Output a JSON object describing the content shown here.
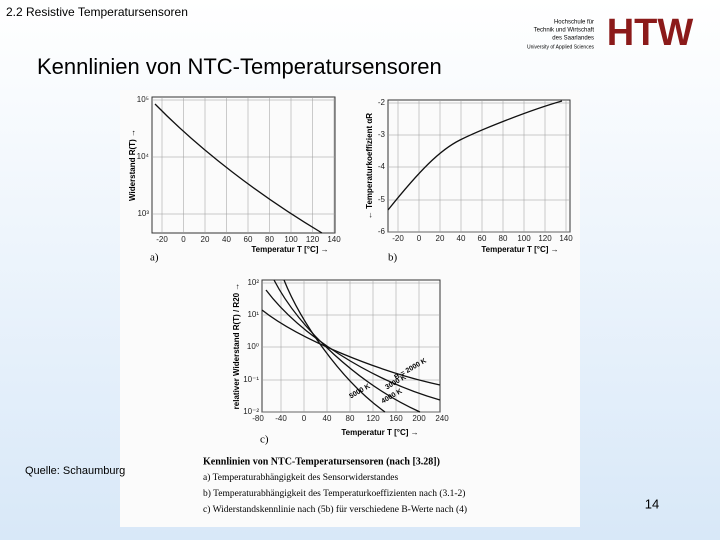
{
  "header": {
    "section": "2.2 Resistive Temperatursensoren",
    "title": "Kennlinien von NTC-Temperatursensoren"
  },
  "logo": {
    "lines": [
      "Hochschule für",
      "Technik und Wirtschaft",
      "des Saarlandes",
      "University of Applied Sciences"
    ],
    "mark": "HTW"
  },
  "figure": {
    "panels": [
      {
        "label": "a)",
        "ylabel": "Widerstand R(T) →",
        "xlabel": "Temperatur T [°C] →",
        "yticks": [
          "10⁵",
          "10⁴",
          "10³"
        ],
        "xticks": [
          "-20",
          "0",
          "20",
          "40",
          "60",
          "80",
          "100",
          "120",
          "140"
        ]
      },
      {
        "label": "b)",
        "ylabel": "← Temperaturkoeffizient αR",
        "xlabel": "Temperatur T [°C] →",
        "yticks": [
          "-2",
          "-3",
          "-4",
          "-5",
          "-6"
        ],
        "xticks": [
          "-20",
          "0",
          "20",
          "40",
          "60",
          "80",
          "100",
          "120",
          "140"
        ]
      },
      {
        "label": "c)",
        "ylabel": "relativer Widerstand R(T) / R20 →",
        "xlabel": "Temperatur T [°C] →",
        "yticks": [
          "10²",
          "10¹",
          "10⁰",
          "10⁻¹",
          "10⁻²"
        ],
        "xticks": [
          "-80",
          "-40",
          "0",
          "40",
          "80",
          "120",
          "160",
          "200",
          "240"
        ]
      }
    ],
    "curve_labels": [
      "B = 2000 K",
      "3000 K",
      "4000 K",
      "5000 K"
    ],
    "caption": [
      "Kennlinien von NTC-Temperatursensoren (nach [3.28])",
      "a) Temperaturabhängigkeit des Sensorwiderstandes",
      "b) Temperaturabhängigkeit des Temperaturkoeffizienten nach (3.1-2)",
      "c) Widerstandskennlinie nach (5b) für verschiedene B-Werte nach (4)"
    ]
  },
  "source": "Quelle: Schaumburg",
  "page": "14"
}
